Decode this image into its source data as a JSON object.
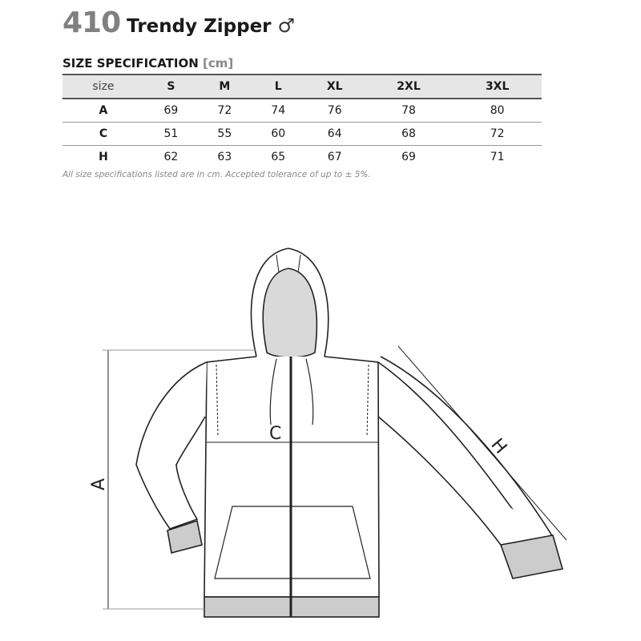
{
  "header": {
    "code": "410",
    "name": "Trendy Zipper",
    "gender_symbol": "♂"
  },
  "spec": {
    "title": "SIZE SPECIFICATION",
    "unit": "[cm]"
  },
  "table": {
    "columns": [
      "size",
      "S",
      "M",
      "L",
      "XL",
      "2XL",
      "3XL"
    ],
    "rows": [
      {
        "label": "A",
        "values": [
          "69",
          "72",
          "74",
          "76",
          "78",
          "80"
        ]
      },
      {
        "label": "C",
        "values": [
          "51",
          "55",
          "60",
          "64",
          "68",
          "72"
        ]
      },
      {
        "label": "H",
        "values": [
          "62",
          "63",
          "65",
          "67",
          "69",
          "71"
        ]
      }
    ]
  },
  "note": "All size specifications listed are in cm. Accepted tolerance of up to ± 5%.",
  "diagram": {
    "label_a": "A",
    "label_c": "C",
    "label_h": "H",
    "hood_lining_color": "#d9d9d9"
  }
}
